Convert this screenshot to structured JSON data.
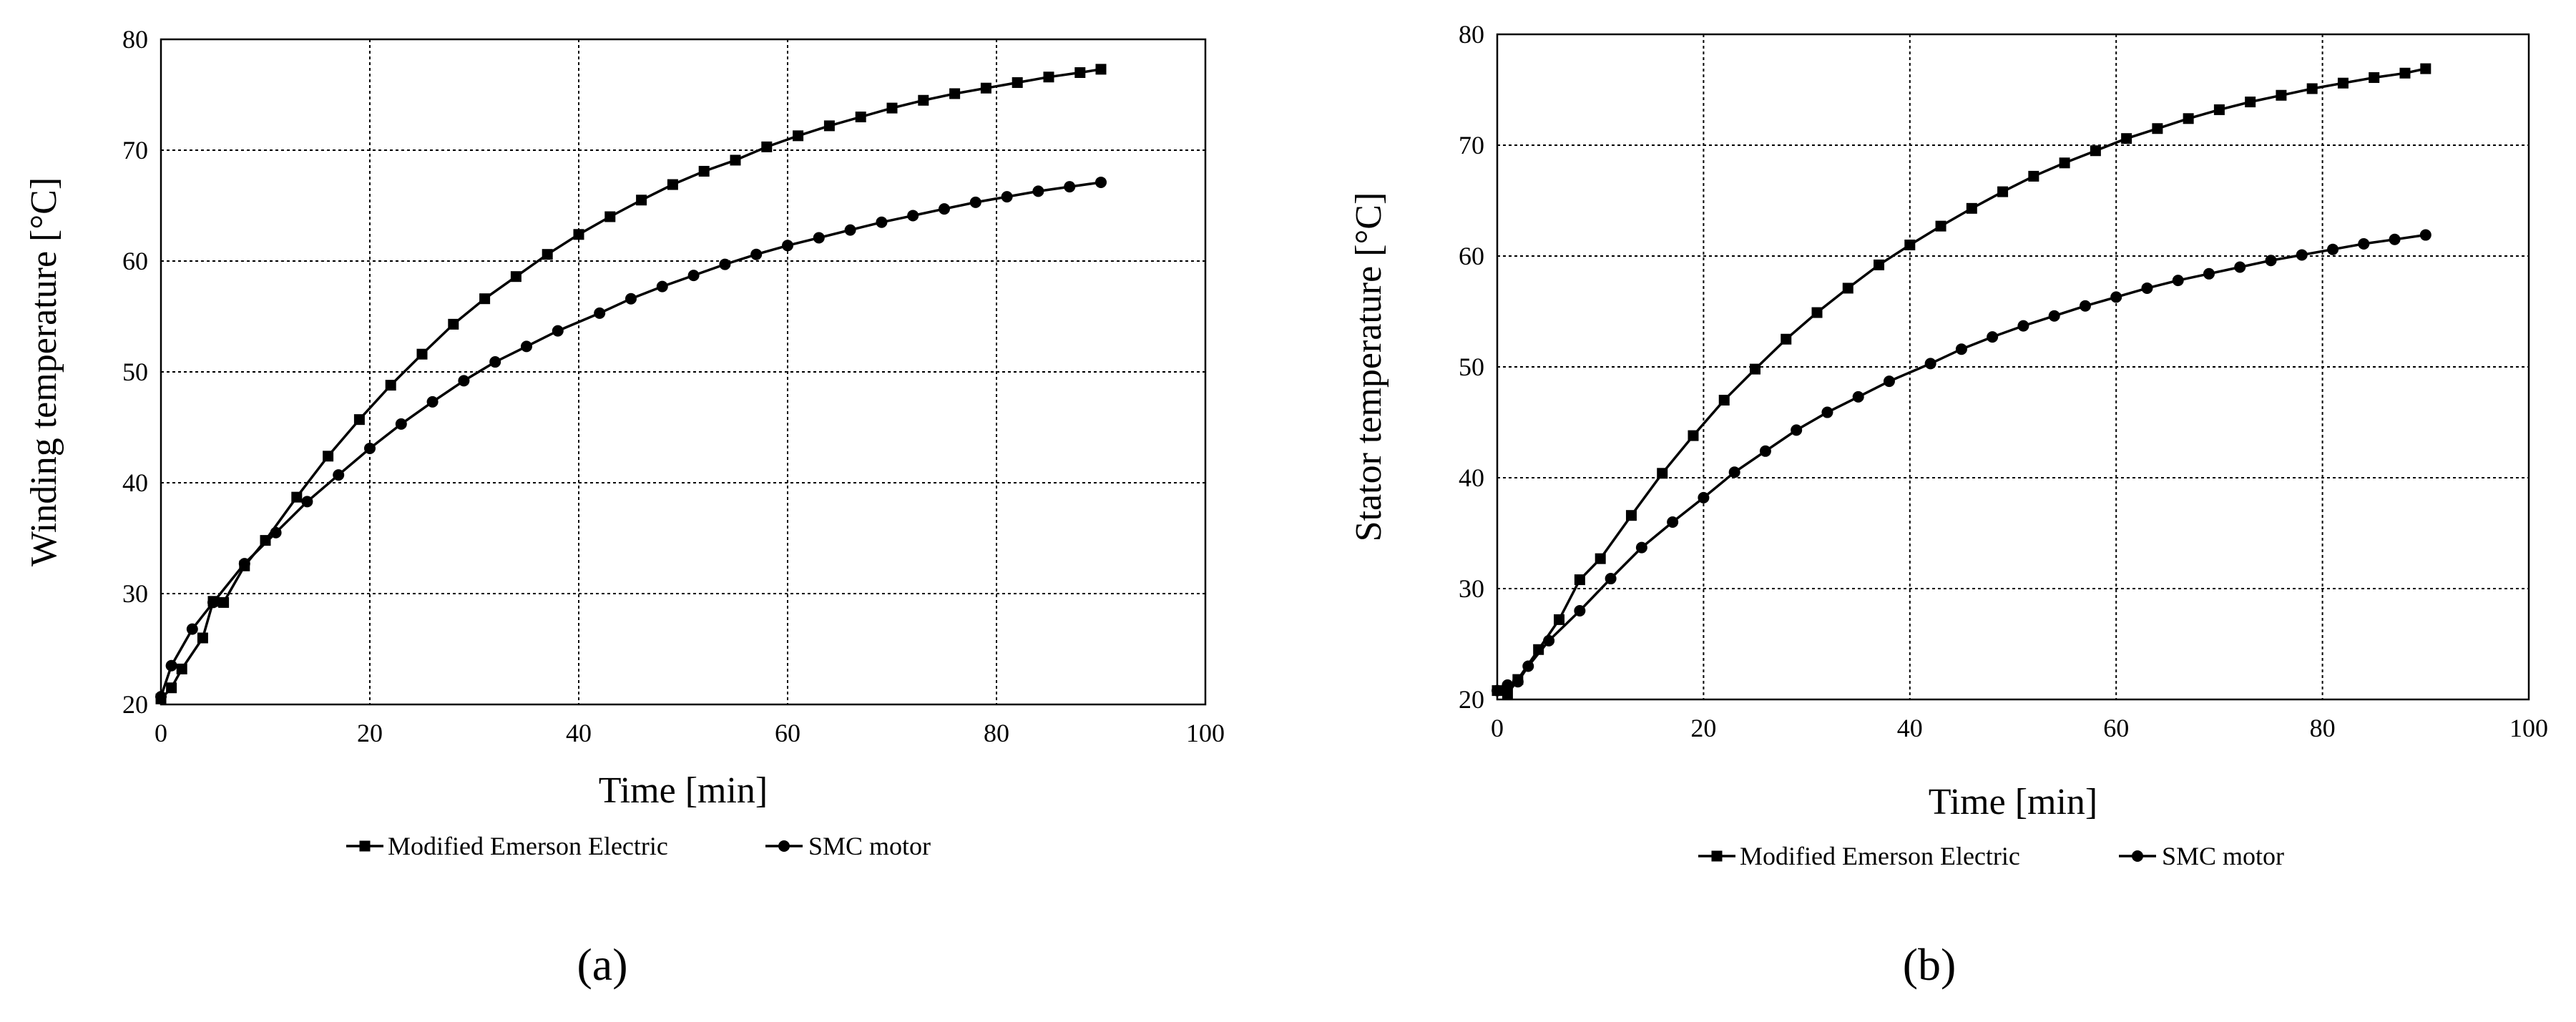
{
  "chart_data": [
    {
      "type": "line",
      "panel_label": "(a)",
      "xlabel": "Time [min]",
      "ylabel": "Winding temperature [°C]",
      "xlim": [
        0,
        100
      ],
      "ylim": [
        20,
        80
      ],
      "xticks": [
        0,
        20,
        40,
        60,
        80,
        100
      ],
      "yticks": [
        20,
        30,
        40,
        50,
        60,
        70,
        80
      ],
      "grid": true,
      "legend_position": "bottom",
      "series": [
        {
          "name": "Modified Emerson Electric",
          "marker": "square",
          "x": [
            0,
            1,
            2,
            4,
            5,
            6,
            8,
            10,
            13,
            16,
            19,
            22,
            25,
            28,
            31,
            34,
            37,
            40,
            43,
            46,
            49,
            52,
            55,
            58,
            61,
            64,
            67,
            70,
            73,
            76,
            79,
            82,
            85,
            88,
            90
          ],
          "y": [
            20.5,
            21.5,
            23.2,
            26.0,
            29.3,
            29.2,
            32.5,
            34.8,
            38.7,
            42.4,
            45.7,
            48.8,
            51.6,
            54.3,
            56.6,
            58.6,
            60.6,
            62.4,
            64.0,
            65.5,
            66.9,
            68.1,
            69.1,
            70.3,
            71.3,
            72.2,
            73.0,
            73.8,
            74.5,
            75.1,
            75.6,
            76.1,
            76.6,
            77.0,
            77.3
          ]
        },
        {
          "name": "SMC motor",
          "marker": "circle",
          "x": [
            0,
            1,
            3,
            5,
            8,
            11,
            14,
            17,
            20,
            23,
            26,
            29,
            32,
            35,
            38,
            42,
            45,
            48,
            51,
            54,
            57,
            60,
            63,
            66,
            69,
            72,
            75,
            78,
            81,
            84,
            87,
            90
          ],
          "y": [
            20.7,
            23.5,
            26.8,
            29.2,
            32.7,
            35.5,
            38.3,
            40.7,
            43.1,
            45.3,
            47.3,
            49.2,
            50.9,
            52.3,
            53.7,
            55.3,
            56.6,
            57.7,
            58.7,
            59.7,
            60.6,
            61.4,
            62.1,
            62.8,
            63.5,
            64.1,
            64.7,
            65.3,
            65.8,
            66.3,
            66.7,
            67.1
          ]
        }
      ]
    },
    {
      "type": "line",
      "panel_label": "(b)",
      "xlabel": "Time [min]",
      "ylabel": "Stator temperature [°C]",
      "xlim": [
        0,
        100
      ],
      "ylim": [
        20,
        80
      ],
      "xticks": [
        0,
        20,
        40,
        60,
        80,
        100
      ],
      "yticks": [
        20,
        30,
        40,
        50,
        60,
        70,
        80
      ],
      "grid": true,
      "legend_position": "bottom",
      "series": [
        {
          "name": "Modified Emerson Electric",
          "marker": "square",
          "x": [
            0,
            1,
            2,
            4,
            6,
            8,
            10,
            13,
            16,
            19,
            22,
            25,
            28,
            31,
            34,
            37,
            40,
            43,
            46,
            49,
            52,
            55,
            58,
            61,
            64,
            67,
            70,
            73,
            76,
            79,
            82,
            85,
            88,
            90
          ],
          "y": [
            20.8,
            20.5,
            21.8,
            24.5,
            27.2,
            30.8,
            32.7,
            36.6,
            40.4,
            43.8,
            47.0,
            49.8,
            52.5,
            54.9,
            57.1,
            59.2,
            61.0,
            62.7,
            64.3,
            65.8,
            67.2,
            68.4,
            69.5,
            70.6,
            71.5,
            72.4,
            73.2,
            73.9,
            74.5,
            75.1,
            75.6,
            76.1,
            76.5,
            76.9
          ]
        },
        {
          "name": "SMC motor",
          "marker": "circle",
          "x": [
            0,
            1,
            2,
            3,
            5,
            8,
            11,
            14,
            17,
            20,
            23,
            26,
            29,
            32,
            35,
            38,
            42,
            45,
            48,
            51,
            54,
            57,
            60,
            63,
            66,
            69,
            72,
            75,
            78,
            81,
            84,
            87,
            90
          ],
          "y": [
            20.8,
            21.3,
            21.6,
            23.0,
            25.3,
            28.0,
            30.9,
            33.7,
            36.0,
            38.2,
            40.5,
            42.4,
            44.3,
            45.9,
            47.3,
            48.7,
            50.3,
            51.6,
            52.7,
            53.7,
            54.6,
            55.5,
            56.3,
            57.1,
            57.8,
            58.4,
            59.0,
            59.6,
            60.1,
            60.6,
            61.1,
            61.5,
            61.9
          ]
        }
      ]
    }
  ]
}
